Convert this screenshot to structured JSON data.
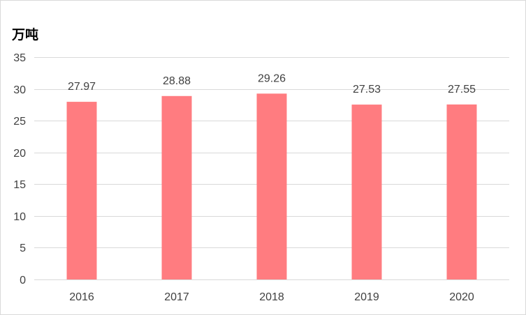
{
  "chart_data": {
    "type": "bar",
    "ylabel": "万吨",
    "categories": [
      "2016",
      "2017",
      "2018",
      "2019",
      "2020"
    ],
    "values": [
      27.97,
      28.88,
      29.26,
      27.53,
      27.55
    ],
    "data_labels": [
      "27.97",
      "28.88",
      "29.26",
      "27.53",
      "27.55"
    ],
    "ylim": [
      0,
      35
    ],
    "yticks": [
      0,
      5,
      10,
      15,
      20,
      25,
      30,
      35
    ],
    "grid": true,
    "bar_color": "#ff7c80",
    "legend": "none"
  }
}
